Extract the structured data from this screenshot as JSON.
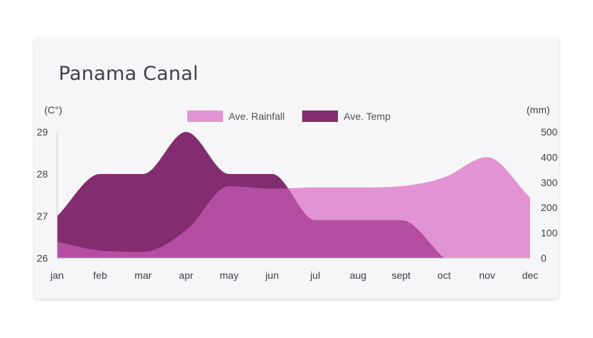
{
  "chart_data": {
    "type": "area",
    "title": "Panama Canal",
    "categories": [
      "jan",
      "feb",
      "mar",
      "apr",
      "may",
      "jun",
      "jul",
      "aug",
      "sept",
      "oct",
      "nov",
      "dec"
    ],
    "left_axis": {
      "unit_label": "(C°)",
      "range": [
        26,
        29
      ],
      "ticks": [
        "26",
        "27",
        "28",
        "29"
      ]
    },
    "right_axis": {
      "unit_label": "(mm)",
      "range": [
        0,
        500
      ],
      "ticks": [
        "0",
        "100",
        "200",
        "300",
        "400",
        "500"
      ]
    },
    "series": [
      {
        "name": "Ave. Rainfall",
        "axis": "right",
        "color": "#e293d4",
        "values": [
          65,
          30,
          25,
          110,
          285,
          275,
          280,
          280,
          285,
          320,
          400,
          240
        ]
      },
      {
        "name": "Ave. Temp",
        "axis": "left",
        "color": "#832d70",
        "values": [
          27.0,
          28.0,
          28.0,
          29.0,
          28.0,
          28.0,
          26.9,
          26.9,
          26.9,
          26.0,
          null,
          null
        ]
      }
    ],
    "overlap_color": "#b54ea3",
    "legend_position": "top-center",
    "grid": false
  }
}
